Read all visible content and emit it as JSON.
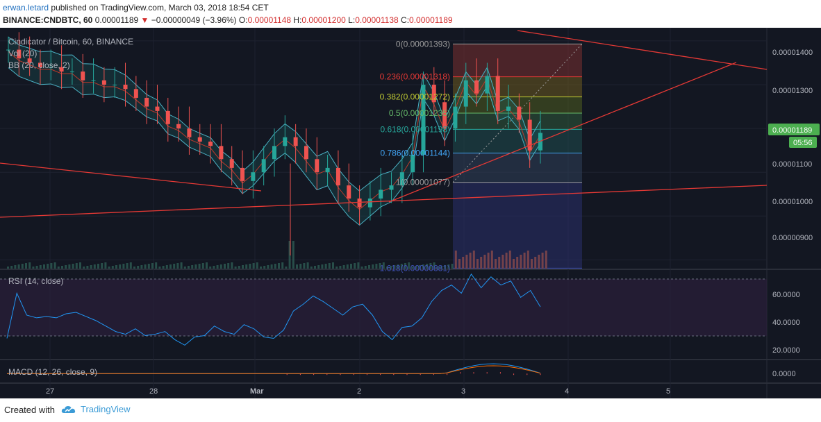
{
  "header": {
    "user": "erwan.letard",
    "published_text": "published on TradingView.com, March 03, 2018 18:54 CET",
    "symbol_line": "BINANCE:CNDBTC, 60",
    "last_price": "0.00001189",
    "change": "−0.00000049 (−3.96%)",
    "o_label": "O:",
    "o_value": "0.00001148",
    "h_label": "H:",
    "h_value": "0.00001200",
    "l_label": "L:",
    "l_value": "0.00001138",
    "c_label": "C:",
    "c_value": "0.00001189"
  },
  "main_pane": {
    "title": "Cindicator / Bitcoin, 60, BINANCE",
    "indicator1": "Vol (20)",
    "indicator2": "BB (20, close, 2)",
    "price_badge": "0.00001189",
    "time_badge": "05:56",
    "y_ticks": [
      "0.00001400",
      "0.00001300",
      "0.00001200",
      "0.00001100",
      "0.00001000",
      "0.00000900"
    ]
  },
  "rsi_pane": {
    "title": "RSI (14, close)",
    "y_ticks": [
      "60.0000",
      "40.0000",
      "20.0000"
    ]
  },
  "macd_pane": {
    "title": "MACD (12, 26, close, 9)",
    "y_ticks": [
      "0.0000"
    ]
  },
  "x_axis": {
    "ticks": [
      "27",
      "28",
      "Mar",
      "2",
      "3",
      "4",
      "5"
    ]
  },
  "footer": {
    "created_with": "Created with",
    "brand": "TradingView"
  },
  "colors": {
    "background": "#131722",
    "up": "#26a69a",
    "down": "#ef5350",
    "bb": "#4bb2c5",
    "trend": "#e53935",
    "rsi": "#2196f3"
  },
  "chart_data": {
    "type": "candlestick",
    "title": "Cindicator / Bitcoin, 60, BINANCE",
    "ylim": [
      8.8e-06,
      1.43e-05
    ],
    "x_ticks": [
      "27",
      "28",
      "Mar",
      "2",
      "3",
      "4",
      "5"
    ],
    "close_path": [
      1.38e-05,
      1.36e-05,
      1.35e-05,
      1.34e-05,
      1.34e-05,
      1.33e-05,
      1.33e-05,
      1.31e-05,
      1.31e-05,
      1.3e-05,
      1.3e-05,
      1.29e-05,
      1.27e-05,
      1.25e-05,
      1.24e-05,
      1.21e-05,
      1.2e-05,
      1.18e-05,
      1.17e-05,
      1.16e-05,
      1.13e-05,
      1.11e-05,
      1.08e-05,
      1.1e-05,
      1.13e-05,
      1.16e-05,
      1.18e-05,
      1.16e-05,
      1.13e-05,
      1.1e-05,
      1.11e-05,
      1.07e-05,
      1.04e-05,
      1.02e-05,
      1.04e-05,
      1.06e-05,
      1.07e-05,
      1.1e-05,
      1.14e-05,
      1.3e-05,
      1.26e-05,
      1.2e-05,
      1.25e-05,
      1.31e-05,
      1.28e-05,
      1.32e-05,
      1.24e-05,
      1.25e-05,
      1.22e-05,
      1.15e-05,
      1.19e-05
    ],
    "fibonacci": [
      {
        "level": "0",
        "price": "0.00001393"
      },
      {
        "level": "0.236",
        "price": "0.00001318"
      },
      {
        "level": "0.382",
        "price": "0.00001272"
      },
      {
        "level": "0.5",
        "price": "0.00001235"
      },
      {
        "level": "0.618",
        "price": "0.00001198"
      },
      {
        "level": "0.786",
        "price": "0.00001144"
      },
      {
        "level": "1",
        "price": "0.00001077"
      },
      {
        "level": "1.618",
        "price": "0.00000881"
      }
    ],
    "fib_labels": [
      "0(0.00001393)",
      "0.236(0.00001318)",
      "0.382(0.00001272)",
      "0.5(0.00001235)",
      "0.618(0.00001198)",
      "0.786(0.00001144)",
      "1(0.00001077)",
      "1.618(0.00000881)"
    ],
    "rsi": {
      "ylim": [
        10,
        75
      ],
      "levels": [
        70,
        30
      ],
      "values": [
        25,
        58,
        42,
        40,
        41,
        40,
        43,
        44,
        41,
        38,
        34,
        30,
        28,
        32,
        27,
        28,
        30,
        24,
        20,
        26,
        27,
        34,
        30,
        28,
        35,
        32,
        26,
        25,
        31,
        45,
        50,
        56,
        52,
        47,
        42,
        48,
        50,
        42,
        30,
        24,
        33,
        34,
        40,
        52,
        60,
        64,
        58,
        72,
        62,
        70,
        64,
        67,
        55,
        60,
        48
      ]
    },
    "macd": {
      "ylim": [
        -2e-07,
        3e-07
      ]
    }
  }
}
